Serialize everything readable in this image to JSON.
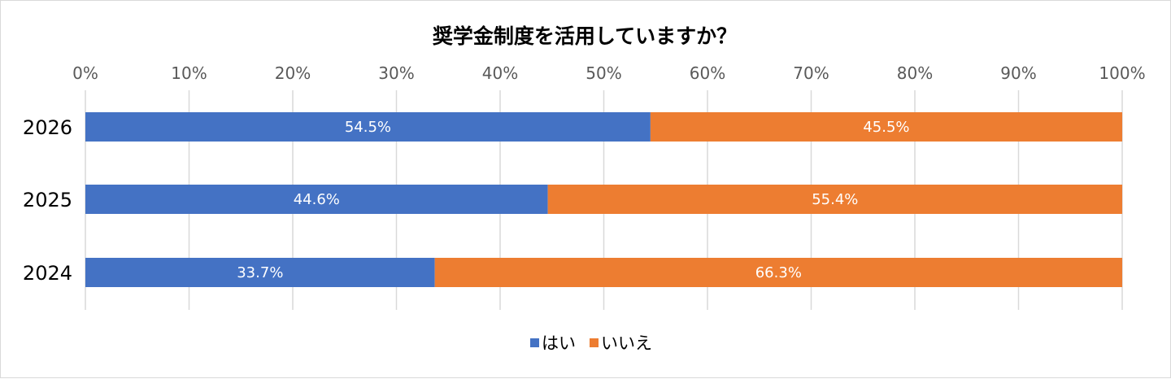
{
  "chart_data": {
    "type": "bar",
    "orientation": "horizontal",
    "stacked": true,
    "title": "奨学金制度を活用していますか？",
    "categories": [
      "2026",
      "2025",
      "2024"
    ],
    "series": [
      {
        "name": "はい",
        "color": "#4472c4",
        "values": [
          54.5,
          44.6,
          33.7
        ],
        "labels": [
          "54.5%",
          "44.6%",
          "33.7%"
        ]
      },
      {
        "name": "いいえ",
        "color": "#ed7d31",
        "values": [
          45.5,
          55.4,
          66.3
        ],
        "labels": [
          "45.5%",
          "55.4%",
          "66.3%"
        ]
      }
    ],
    "xlim": [
      0,
      100
    ],
    "xticks": [
      "0%",
      "10%",
      "20%",
      "30%",
      "40%",
      "50%",
      "60%",
      "70%",
      "80%",
      "90%",
      "100%"
    ],
    "grid": true,
    "legend_position": "bottom"
  }
}
